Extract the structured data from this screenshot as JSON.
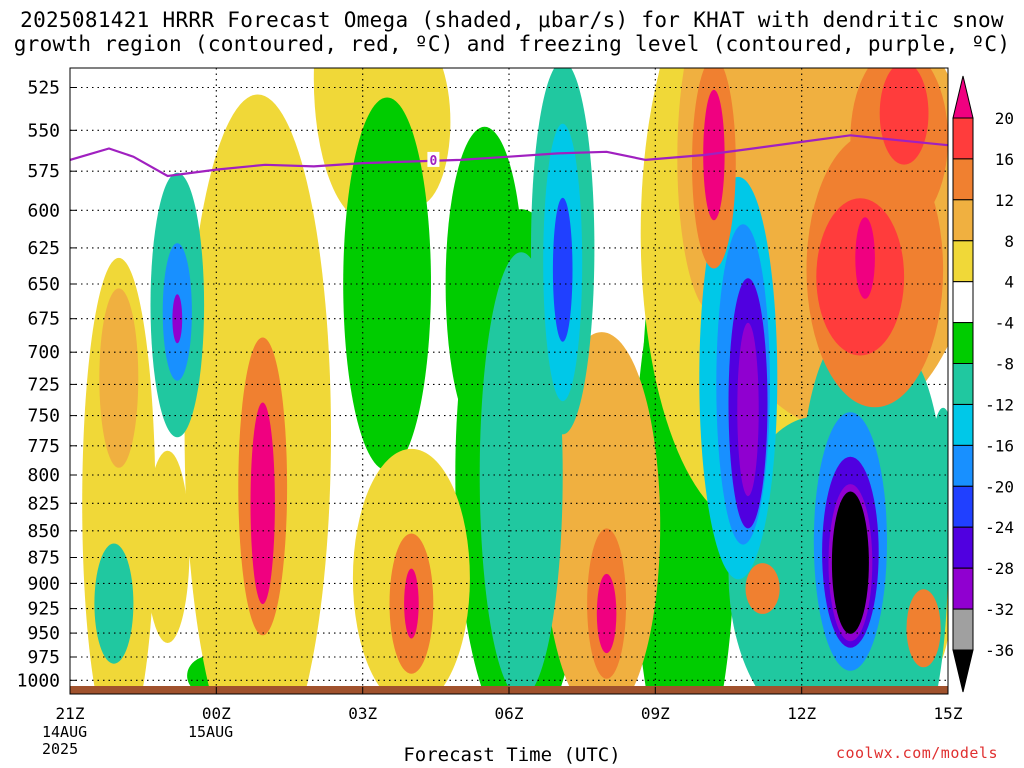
{
  "title": {
    "line1": "2025081421 HRRR Forecast Omega (shaded, μbar/s) for KHAT with dendritic snow",
    "line2": "growth region (contoured, red, ºC) and freezing level (contoured, purple, ºC)"
  },
  "credit": "coolwx.com/models",
  "chart_data": {
    "type": "heatmap",
    "title": "2025081421 HRRR Forecast Omega (shaded, μbar/s) for KHAT with dendritic snow growth region (contoured, red, ºC) and freezing level (contoured, purple, ºC)",
    "xlabel": "Forecast Time (UTC)",
    "ylabel": "",
    "x_ticks": [
      "21Z",
      "00Z",
      "03Z",
      "06Z",
      "09Z",
      "12Z",
      "15Z"
    ],
    "x_tick_hours": [
      0,
      3,
      6,
      9,
      12,
      15,
      18
    ],
    "x_date_labels": [
      {
        "hour": 0,
        "lines": [
          "14AUG",
          "2025"
        ]
      },
      {
        "hour": 3,
        "lines": [
          "15AUG"
        ]
      }
    ],
    "xlim_hours": [
      0,
      18
    ],
    "y_ticks": [
      525,
      550,
      575,
      600,
      625,
      650,
      675,
      700,
      725,
      750,
      775,
      800,
      825,
      850,
      875,
      900,
      925,
      950,
      975,
      1000
    ],
    "ylim": [
      1015,
      514
    ],
    "y_scale": "log",
    "grid": true,
    "colorbar": {
      "labels": [
        "20",
        "16",
        "12",
        "8",
        "4",
        "-4",
        "-8",
        "-12",
        "-16",
        "-20",
        "-24",
        "-28",
        "-32",
        "-36"
      ],
      "levels": [
        -36,
        -32,
        -28,
        -24,
        -20,
        -16,
        -12,
        -8,
        -4,
        4,
        8,
        12,
        16,
        20
      ],
      "colors": [
        "#000000",
        "#a0a0a0",
        "#9000d0",
        "#5000e0",
        "#2040ff",
        "#1890ff",
        "#00c8e8",
        "#20c8a0",
        "#00cc00",
        "#ffffff",
        "#f0d838",
        "#f0b040",
        "#f08030",
        "#ff3c3c",
        "#f00080"
      ]
    },
    "freezing_level": {
      "label": "0",
      "color": "#a020c0",
      "points": [
        [
          0,
          568
        ],
        [
          0.8,
          561
        ],
        [
          1.3,
          566
        ],
        [
          2,
          578
        ],
        [
          3,
          574
        ],
        [
          4,
          571
        ],
        [
          5,
          572
        ],
        [
          6,
          570
        ],
        [
          7,
          569
        ],
        [
          8,
          568
        ],
        [
          9,
          566
        ],
        [
          10,
          564
        ],
        [
          11,
          563
        ],
        [
          11.8,
          568
        ],
        [
          13,
          565
        ],
        [
          14,
          561
        ],
        [
          15,
          557
        ],
        [
          16,
          553
        ],
        [
          17,
          556
        ],
        [
          18,
          559
        ]
      ]
    },
    "blobs": [
      {
        "t": 1.0,
        "p": 825,
        "rt": 0.75,
        "rp": 215,
        "v": 5
      },
      {
        "t": 1.0,
        "p": 720,
        "rt": 0.4,
        "rp": 70,
        "v": 9
      },
      {
        "t": 0.9,
        "p": 920,
        "rt": 0.4,
        "rp": 60,
        "v": -9
      },
      {
        "t": 2.0,
        "p": 865,
        "rt": 0.45,
        "rp": 90,
        "v": 6
      },
      {
        "t": 2.2,
        "p": 665,
        "rt": 0.55,
        "rp": 95,
        "v": -12
      },
      {
        "t": 2.2,
        "p": 670,
        "rt": 0.3,
        "rp": 50,
        "v": -20
      },
      {
        "t": 2.2,
        "p": 675,
        "rt": 0.1,
        "rp": 18,
        "v": -30
      },
      {
        "t": 2.9,
        "p": 995,
        "rt": 0.5,
        "rp": 22,
        "v": -6
      },
      {
        "t": 3.85,
        "p": 765,
        "rt": 1.5,
        "rp": 270,
        "v": 6
      },
      {
        "t": 3.95,
        "p": 810,
        "rt": 0.5,
        "rp": 130,
        "v": 14
      },
      {
        "t": 3.95,
        "p": 825,
        "rt": 0.25,
        "rp": 90,
        "v": 21
      },
      {
        "t": 6.1,
        "p": 520,
        "rt": 1.1,
        "rp": 80,
        "v": 5
      },
      {
        "t": 7.1,
        "p": 545,
        "rt": 0.7,
        "rp": 50,
        "v": 5
      },
      {
        "t": 7.0,
        "p": 895,
        "rt": 1.2,
        "rp": 125,
        "v": 7
      },
      {
        "t": 7.0,
        "p": 920,
        "rt": 0.45,
        "rp": 70,
        "v": 15
      },
      {
        "t": 7.0,
        "p": 920,
        "rt": 0.15,
        "rp": 35,
        "v": 21
      },
      {
        "t": 6.5,
        "p": 650,
        "rt": 0.9,
        "rp": 130,
        "v": -6
      },
      {
        "t": 8.5,
        "p": 650,
        "rt": 0.8,
        "rp": 110,
        "v": -6
      },
      {
        "t": 8.9,
        "p": 740,
        "rt": 0.55,
        "rp": 170,
        "v": -6
      },
      {
        "t": 9.25,
        "p": 800,
        "rt": 1.35,
        "rp": 225,
        "v": -6
      },
      {
        "t": 9.25,
        "p": 800,
        "rt": 0.85,
        "rp": 190,
        "v": -12
      },
      {
        "t": 10.1,
        "p": 625,
        "rt": 0.65,
        "rp": 125,
        "v": -12
      },
      {
        "t": 10.1,
        "p": 635,
        "rt": 0.4,
        "rp": 95,
        "v": -16
      },
      {
        "t": 10.1,
        "p": 640,
        "rt": 0.2,
        "rp": 50,
        "v": -22
      },
      {
        "t": 10.9,
        "p": 845,
        "rt": 1.2,
        "rp": 175,
        "v": 8
      },
      {
        "t": 11.0,
        "p": 920,
        "rt": 0.4,
        "rp": 75,
        "v": 14
      },
      {
        "t": 11.0,
        "p": 930,
        "rt": 0.2,
        "rp": 40,
        "v": 21
      },
      {
        "t": 12.6,
        "p": 545,
        "rt": 0.6,
        "rp": 60,
        "v": 5
      },
      {
        "t": 13.2,
        "p": 567,
        "rt": 0.75,
        "rp": 95,
        "v": 9
      },
      {
        "t": 13.2,
        "p": 570,
        "rt": 0.45,
        "rp": 65,
        "v": 15
      },
      {
        "t": 13.2,
        "p": 565,
        "rt": 0.22,
        "rp": 40,
        "v": 21
      },
      {
        "t": 12.0,
        "p": 850,
        "rt": 0.12,
        "rp": 32,
        "v": -6
      },
      {
        "t": 12.3,
        "p": 780,
        "rt": 0.6,
        "rp": 200,
        "v": -6
      },
      {
        "t": 12.6,
        "p": 830,
        "rt": 1.05,
        "rp": 240,
        "v": -6
      },
      {
        "t": 13.7,
        "p": 720,
        "rt": 0.8,
        "rp": 155,
        "v": -13
      },
      {
        "t": 13.8,
        "p": 725,
        "rt": 0.55,
        "rp": 125,
        "v": -18
      },
      {
        "t": 13.9,
        "p": 740,
        "rt": 0.4,
        "rp": 100,
        "v": -25
      },
      {
        "t": 13.9,
        "p": 745,
        "rt": 0.22,
        "rp": 70,
        "v": -30
      },
      {
        "t": 14.1,
        "p": 935,
        "rt": 0.5,
        "rp": 40,
        "v": 7
      },
      {
        "t": 14.2,
        "p": 905,
        "rt": 0.35,
        "rp": 25,
        "v": 14
      },
      {
        "t": 15.3,
        "p": 890,
        "rt": 1.8,
        "rp": 150,
        "v": -9
      },
      {
        "t": 16.2,
        "p": 880,
        "rt": 1.1,
        "rp": 170,
        "v": -9
      },
      {
        "t": 17.1,
        "p": 875,
        "rt": 0.9,
        "rp": 190,
        "v": -9
      },
      {
        "t": 16.4,
        "p": 770,
        "rt": 0.9,
        "rp": 140,
        "v": -9
      },
      {
        "t": 17.9,
        "p": 820,
        "rt": 0.3,
        "rp": 80,
        "v": -9
      },
      {
        "t": 16.0,
        "p": 835,
        "rt": 1.05,
        "rp": 165,
        "v": -10
      },
      {
        "t": 16.0,
        "p": 860,
        "rt": 0.75,
        "rp": 120,
        "v": -17
      },
      {
        "t": 16.0,
        "p": 870,
        "rt": 0.58,
        "rp": 90,
        "v": -25
      },
      {
        "t": 16.0,
        "p": 880,
        "rt": 0.45,
        "rp": 75,
        "v": -32
      },
      {
        "t": 16.0,
        "p": 880,
        "rt": 0.38,
        "rp": 68,
        "v": -40
      },
      {
        "t": 14.0,
        "p": 615,
        "rt": 2.3,
        "rp": 190,
        "v": 7
      },
      {
        "t": 15.8,
        "p": 600,
        "rt": 2.8,
        "rp": 140,
        "v": 8
      },
      {
        "t": 16.5,
        "p": 640,
        "rt": 1.4,
        "rp": 95,
        "v": 13
      },
      {
        "t": 16.2,
        "p": 645,
        "rt": 0.9,
        "rp": 55,
        "v": 17
      },
      {
        "t": 16.3,
        "p": 632,
        "rt": 0.2,
        "rp": 28,
        "v": 22
      },
      {
        "t": 17.0,
        "p": 555,
        "rt": 1.0,
        "rp": 55,
        "v": 14
      },
      {
        "t": 17.1,
        "p": 540,
        "rt": 0.5,
        "rp": 30,
        "v": 19
      },
      {
        "t": 17.5,
        "p": 925,
        "rt": 0.55,
        "rp": 70,
        "v": 7
      },
      {
        "t": 17.5,
        "p": 945,
        "rt": 0.35,
        "rp": 40,
        "v": 13
      }
    ]
  }
}
